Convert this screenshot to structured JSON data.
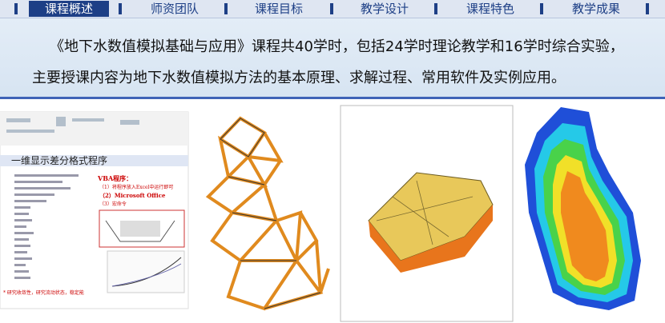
{
  "nav": {
    "tabs": [
      "课程概述",
      "师资团队",
      "课程目标",
      "教学设计",
      "课程特色",
      "教学成果"
    ]
  },
  "intro": {
    "lines": [
      "《地下水数值模拟基础与应用》课程共40学时，包括24学时理论教学和16学时综合实验，",
      "主要授课内容为地下水数值模拟方法的基本原理、求解过程、常用软件及实例应用。"
    ]
  },
  "slide": {
    "heading": "一维显示差分格式程序",
    "vba_title": "VBA程序：",
    "vba_items": [
      "（1）将程序放入Excel中运行即可",
      "（2）Microsoft Office",
      "（3）宏命令"
    ],
    "note": "* 研究收敛性，研究流动状态，稳定能"
  }
}
